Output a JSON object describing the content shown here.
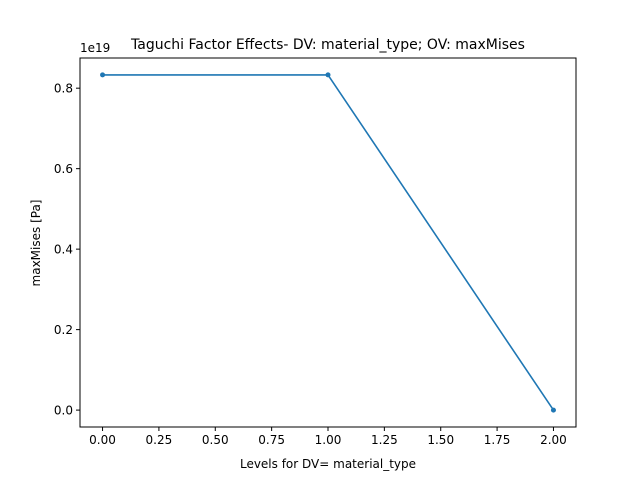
{
  "chart_data": {
    "type": "line",
    "title": "Taguchi Factor Effects- DV: material_type; OV: maxMises",
    "xlabel": "Levels for DV= material_type",
    "ylabel": "maxMises [Pa]",
    "offset_text": "1e19",
    "xlim": [
      -0.1,
      2.1
    ],
    "ylim": [
      -0.042,
      0.875
    ],
    "xticks": [
      0.0,
      0.25,
      0.5,
      0.75,
      1.0,
      1.25,
      1.5,
      1.75,
      2.0
    ],
    "xtick_labels": [
      "0.00",
      "0.25",
      "0.50",
      "0.75",
      "1.00",
      "1.25",
      "1.50",
      "1.75",
      "2.00"
    ],
    "yticks": [
      0.0,
      0.2,
      0.4,
      0.6,
      0.8
    ],
    "ytick_labels": [
      "0.0",
      "0.2",
      "0.4",
      "0.6",
      "0.8"
    ],
    "grid": false,
    "series": [
      {
        "x": [
          0,
          1,
          2
        ],
        "values": [
          0.833,
          0.833,
          0.0
        ],
        "color": "#1f77b4",
        "marker": "circle"
      }
    ]
  }
}
